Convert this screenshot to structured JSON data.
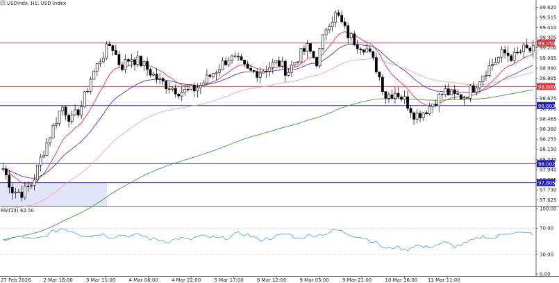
{
  "header": {
    "symbol_label": "USDindx, H1:  USD Index",
    "rsi_label": "RSI(14) 62.50"
  },
  "colors": {
    "up_candle": "#ffffff",
    "down_candle": "#000000",
    "ema_fast": "#e8313a",
    "ema_mid": "#3c3cd6",
    "ema_slow": "#f5a3a3",
    "ema_long": "#3d9a3d",
    "rsi_line": "#3aa3e8",
    "red_level": "#e8313a",
    "blue_level": "#1c1cb8",
    "shade": "#e2e4f8"
  },
  "chart_data": {
    "type": "candlestick",
    "price_axis_ticks": [
      "99.620",
      "99.515",
      "99.410",
      "99.305",
      "99.200",
      "99.095",
      "98.990",
      "98.885",
      "98.780",
      "98.675",
      "98.570",
      "98.465",
      "98.360",
      "98.255",
      "98.150",
      "98.045",
      "97.940",
      "97.835",
      "97.730",
      "97.625"
    ],
    "time_axis_ticks": [
      "27 Feb 2026",
      "2 Mar 16:00",
      "3 Mar 11:00",
      "4 Mar 06:00",
      "4 Mar 22:00",
      "5 Mar 17:00",
      "6 Mar 12:00",
      "9 Mar 05:00",
      "9 Mar 21:00",
      "10 Mar 16:00",
      "11 Mar 11:00"
    ],
    "price_range": [
      97.58,
      99.68
    ],
    "levels": [
      {
        "price": 99.25,
        "label": "99.250",
        "color": "red"
      },
      {
        "price": 98.8,
        "label": "98.800",
        "color": "red"
      },
      {
        "price": 98.603,
        "label": "98.603",
        "color": "blue"
      },
      {
        "price": 98.002,
        "label": "98.002",
        "color": "blue"
      },
      {
        "price": 97.805,
        "label": "97.805",
        "color": "blue"
      }
    ],
    "rsi_axis_ticks": [
      "100.00",
      "70.00",
      "30.00",
      "0.00"
    ],
    "rsi_levels": [
      70,
      30
    ],
    "rsi_value": 62.5,
    "close_anchors": [
      97.95,
      97.72,
      97.7,
      97.8,
      98.1,
      98.35,
      98.6,
      98.45,
      98.6,
      98.9,
      99.1,
      99.25,
      99.0,
      99.1,
      99.05,
      98.95,
      98.85,
      98.8,
      98.75,
      98.75,
      98.8,
      98.9,
      99.0,
      99.1,
      99.05,
      98.95,
      98.95,
      99.0,
      99.05,
      98.95,
      99.1,
      99.2,
      99.05,
      99.45,
      99.55,
      99.35,
      99.25,
      99.2,
      99.0,
      98.7,
      98.75,
      98.65,
      98.5,
      98.55,
      98.65,
      98.75,
      98.7,
      98.7,
      98.8,
      98.95,
      99.05,
      99.15,
      99.1,
      99.18,
      99.17
    ],
    "rsi_anchors": [
      52,
      55,
      57,
      52,
      56,
      64,
      70,
      66,
      60,
      58,
      62,
      56,
      60,
      58,
      60,
      54,
      52,
      50,
      55,
      52,
      58,
      56,
      54,
      56,
      62,
      60,
      52,
      54,
      58,
      62,
      54,
      58,
      60,
      62,
      68,
      62,
      58,
      54,
      48,
      38,
      42,
      36,
      45,
      40,
      44,
      48,
      42,
      46,
      52,
      58,
      54,
      62,
      64,
      62,
      62
    ]
  }
}
